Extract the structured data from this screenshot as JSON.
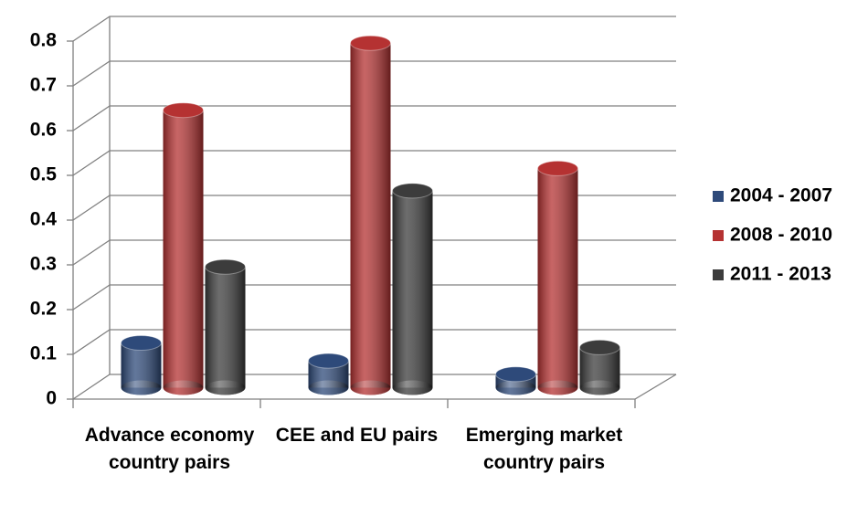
{
  "chart_data": {
    "type": "bar3d",
    "categories": [
      "Advance economy country pairs",
      "CEE and EU pairs",
      "Emerging market country pairs"
    ],
    "series": [
      {
        "name": "2004 - 2007",
        "color": "#2e4a7a",
        "values": [
          0.1,
          0.06,
          0.03
        ]
      },
      {
        "name": "2008 - 2010",
        "color": "#b53232",
        "values": [
          0.62,
          0.77,
          0.49
        ]
      },
      {
        "name": "2011 - 2013",
        "color": "#3c3c3c",
        "values": [
          0.27,
          0.44,
          0.09
        ]
      }
    ],
    "ylim": [
      0,
      0.8
    ],
    "yticks": [
      0,
      0.1,
      0.2,
      0.3,
      0.4,
      0.5,
      0.6,
      0.7,
      0.8
    ],
    "grid": true,
    "legend": "right"
  }
}
